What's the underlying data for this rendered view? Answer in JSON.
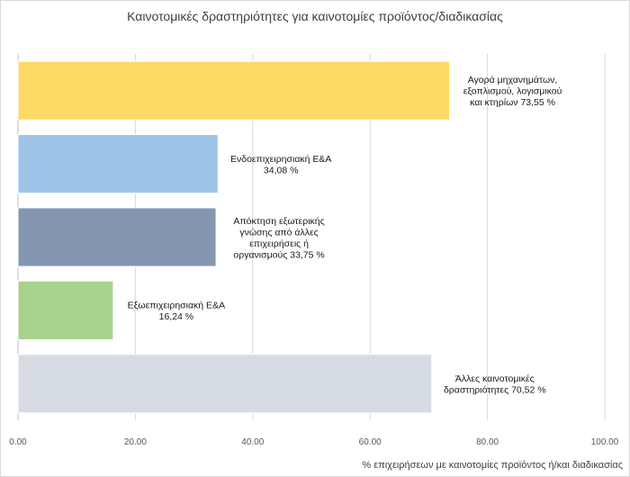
{
  "chart_data": {
    "type": "bar",
    "orientation": "horizontal",
    "title": "Καινοτομικές δραστηριότητες για καινοτομίες προϊόντος/διαδικασίας",
    "xlabel": "% επιχειρήσεων με καινοτομίες προϊόντος ή/και διαδικασίας",
    "ylabel": "",
    "xlim": [
      0,
      100
    ],
    "xticks": [
      "0.00",
      "20.00",
      "40.00",
      "60.00",
      "80.00",
      "100.00"
    ],
    "grid": true,
    "categories": [
      "Αγορά μηχανημάτων, εξοπλισμού, λογισμικού και κτηρίων",
      "Ενδοεπιχειρησιακή Ε&Α",
      "Απόκτηση εξωτερικής γνώσης από άλλες επιχειρήσεις ή οργανισμούς",
      "Εξωεπιχειρησιακή Ε&Α",
      "Άλλες καινοτομικές δραστηριότητες"
    ],
    "values": [
      73.55,
      34.08,
      33.75,
      16.24,
      70.52
    ],
    "data_labels": [
      [
        "Αγορά μηχανημάτων,",
        "εξοπλισμού, λογισμικού",
        "και κτηρίων 73,55 %"
      ],
      [
        "Ενδοεπιχειρησιακή Ε&Α",
        "34,08 %"
      ],
      [
        "Απόκτηση εξωτερικής",
        "γνώσης από άλλες",
        "επιχειρήσεις ή",
        "οργανισμούς 33,75 %"
      ],
      [
        "Εξωεπιχειρησιακή Ε&Α",
        "16,24 %"
      ],
      [
        "Άλλες καινοτομικές",
        "δραστηριότητες 70,52 %"
      ]
    ],
    "colors": [
      "#ffd966",
      "#9dc3e6",
      "#8497b0",
      "#a9d18e",
      "#d6dce4"
    ]
  }
}
